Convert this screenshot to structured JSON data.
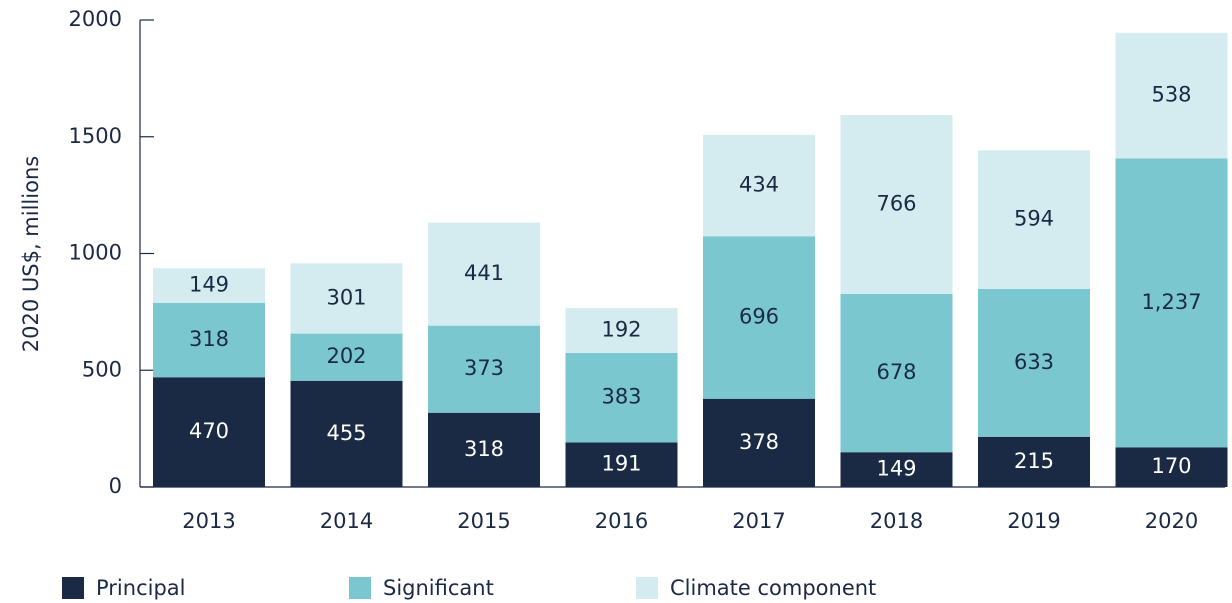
{
  "chart_data": {
    "type": "bar",
    "stacked": true,
    "y_label": "2020 US$, millions",
    "categories": [
      "2013",
      "2014",
      "2015",
      "2016",
      "2017",
      "2018",
      "2019",
      "2020"
    ],
    "series": [
      {
        "name": "Principal",
        "color": "#1b2a44",
        "label_color": "#ffffff",
        "values": [
          470,
          455,
          318,
          191,
          378,
          149,
          215,
          170
        ]
      },
      {
        "name": "Significant",
        "color": "#7ac7d0",
        "label_color": "#1b2a44",
        "values": [
          318,
          202,
          373,
          383,
          696,
          678,
          633,
          1237
        ],
        "value_labels": [
          "318",
          "202",
          "373",
          "383",
          "696",
          "678",
          "633",
          "1,237"
        ]
      },
      {
        "name": "Climate component",
        "color": "#d4ebef",
        "label_color": "#1b2a44",
        "values": [
          149,
          301,
          441,
          192,
          434,
          766,
          594,
          538
        ]
      }
    ],
    "ylim": [
      0,
      2000
    ],
    "yticks": [
      0,
      500,
      1000,
      1500,
      2000
    ]
  }
}
